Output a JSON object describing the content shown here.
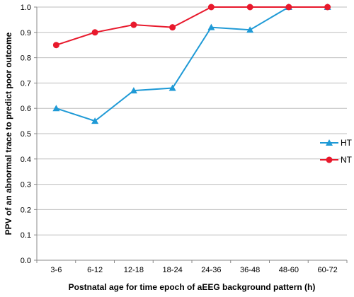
{
  "chart_data": {
    "type": "line",
    "categories": [
      "3-6",
      "6-12",
      "12-18",
      "18-24",
      "24-36",
      "36-48",
      "48-60",
      "60-72"
    ],
    "series": [
      {
        "name": "HT",
        "values": [
          0.6,
          0.55,
          0.67,
          0.68,
          0.92,
          0.91,
          1.0,
          1.0
        ],
        "color": "#1f9ad6",
        "marker": "triangle"
      },
      {
        "name": "NT",
        "values": [
          0.85,
          0.9,
          0.93,
          0.92,
          1.0,
          1.0,
          1.0,
          1.0
        ],
        "color": "#e8192c",
        "marker": "circle"
      }
    ],
    "xlabel": "Postnatal age for time epoch of aEEG background pattern (h)",
    "ylabel": "PPV of an abnormal trace to predict poor outcome",
    "ylim": [
      0,
      1.0
    ],
    "yticks": [
      "0.0",
      "0.1",
      "0.2",
      "0.3",
      "0.4",
      "0.5",
      "0.6",
      "0.7",
      "0.8",
      "0.9",
      "1.0"
    ],
    "grid": true,
    "legend_position": "right"
  }
}
